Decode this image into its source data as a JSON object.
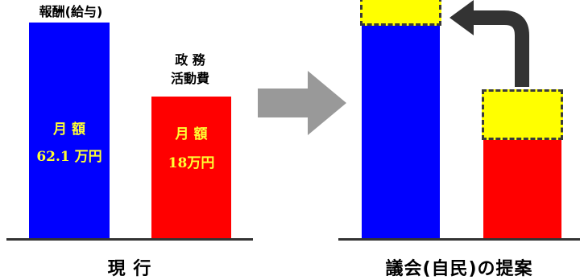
{
  "current": {
    "salary_label": "報酬(給与)",
    "activity_label_line1": "政 務",
    "activity_label_line2": "活動費",
    "salary_monthly_label": "月 額",
    "salary_amount": "62.1 万円",
    "activity_monthly_label": "月 額",
    "activity_amount": "18万円",
    "caption": "現 行"
  },
  "proposal": {
    "caption": "議会(自民)の提案"
  },
  "colors": {
    "salary": "#0000ff",
    "activity": "#ff0000",
    "highlight": "#ffff00",
    "arrow": "#999999",
    "curved_arrow": "#333333"
  }
}
